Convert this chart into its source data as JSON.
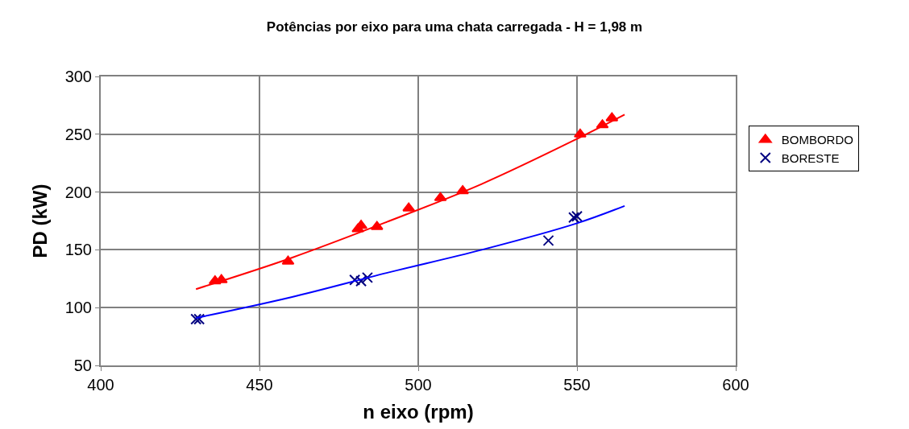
{
  "chart_data": {
    "type": "scatter",
    "title": "Potências por eixo para uma chata carregada - H = 1,98 m",
    "xlabel": "n eixo (rpm)",
    "ylabel": "PD (kW)",
    "xlim": [
      400,
      600
    ],
    "xticks": [
      400,
      450,
      500,
      550,
      600
    ],
    "ylim": [
      50,
      300
    ],
    "yticks": [
      50,
      100,
      150,
      200,
      250,
      300
    ],
    "grid": true,
    "legend": "right",
    "series": [
      {
        "name": "BOMBORDO",
        "color": "#ff0000",
        "marker": "triangle",
        "x": [
          436,
          438,
          459,
          481,
          482,
          487,
          497,
          507,
          514,
          551,
          558,
          561
        ],
        "values": [
          123,
          124,
          140,
          168,
          171,
          170,
          186,
          195,
          201,
          250,
          258,
          264
        ]
      },
      {
        "name": "BORESTE",
        "color": "#000080",
        "marker": "cross",
        "x": [
          430,
          431,
          480,
          482,
          484,
          541,
          549,
          550
        ],
        "values": [
          90,
          90,
          124,
          123,
          126,
          158,
          178,
          179
        ]
      },
      {
        "type": "line",
        "color": "#ff0000",
        "marker": "none",
        "x": [
          430,
          460,
          490,
          520,
          550,
          565
        ],
        "values": [
          116,
          143,
          174,
          207,
          246,
          267
        ]
      },
      {
        "type": "line",
        "color": "#0000ff",
        "marker": "none",
        "x": [
          430,
          460,
          490,
          520,
          550,
          565
        ],
        "values": [
          91,
          109,
          130,
          150,
          173,
          188
        ]
      }
    ]
  }
}
